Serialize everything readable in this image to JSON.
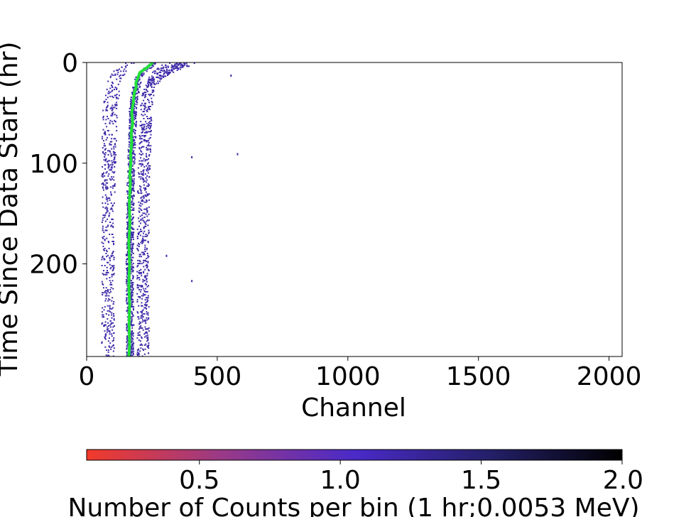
{
  "chart_data": {
    "type": "heatmap",
    "title": "",
    "xlabel": "Channel",
    "ylabel": "Time Since Data Start (hr)",
    "xlim": [
      0,
      2050
    ],
    "ylim": [
      292,
      0
    ],
    "x_ticks": [
      {
        "value": 0,
        "label": "0"
      },
      {
        "value": 500,
        "label": "500"
      },
      {
        "value": 1000,
        "label": "1000"
      },
      {
        "value": 1500,
        "label": "1500"
      },
      {
        "value": 2000,
        "label": "2000"
      }
    ],
    "y_ticks": [
      {
        "value": 0,
        "label": "0"
      },
      {
        "value": 100,
        "label": "100"
      },
      {
        "value": 200,
        "label": "200"
      }
    ],
    "counts_color": "#3d2aa8",
    "centroid_line_color": "#22e03a",
    "centroid_trace": {
      "time_hr": [
        0,
        5,
        10,
        15,
        20,
        25,
        30,
        40,
        50,
        60,
        70,
        80,
        90,
        100,
        110,
        120,
        140,
        160,
        180,
        200,
        220,
        240,
        260,
        280,
        292
      ],
      "channel": [
        255,
        230,
        205,
        195,
        190,
        188,
        184,
        177,
        174,
        175,
        172,
        171,
        170,
        168,
        167,
        166,
        165,
        164,
        163,
        163,
        163,
        163,
        164,
        163,
        163
      ]
    },
    "isolated_counts": [
      {
        "channel": 550,
        "time_hr": 12
      },
      {
        "channel": 400,
        "time_hr": 93
      },
      {
        "channel": 575,
        "time_hr": 90
      },
      {
        "channel": 400,
        "time_hr": 216
      },
      {
        "channel": 303,
        "time_hr": 191
      }
    ],
    "colorbar": {
      "label": "Number of Counts per bin (1 hr;0.0053 MeV)",
      "range": [
        0.1,
        2.0
      ],
      "colors": [
        "#f23a2a",
        "#9a3a86",
        "#4a2ac8",
        "#25206a",
        "#000000"
      ],
      "ticks": [
        {
          "value": 0.5,
          "label": "0.5"
        },
        {
          "value": 1.0,
          "label": "1.0"
        },
        {
          "value": 1.5,
          "label": "1.5"
        },
        {
          "value": 2.0,
          "label": "2.0"
        }
      ]
    }
  }
}
